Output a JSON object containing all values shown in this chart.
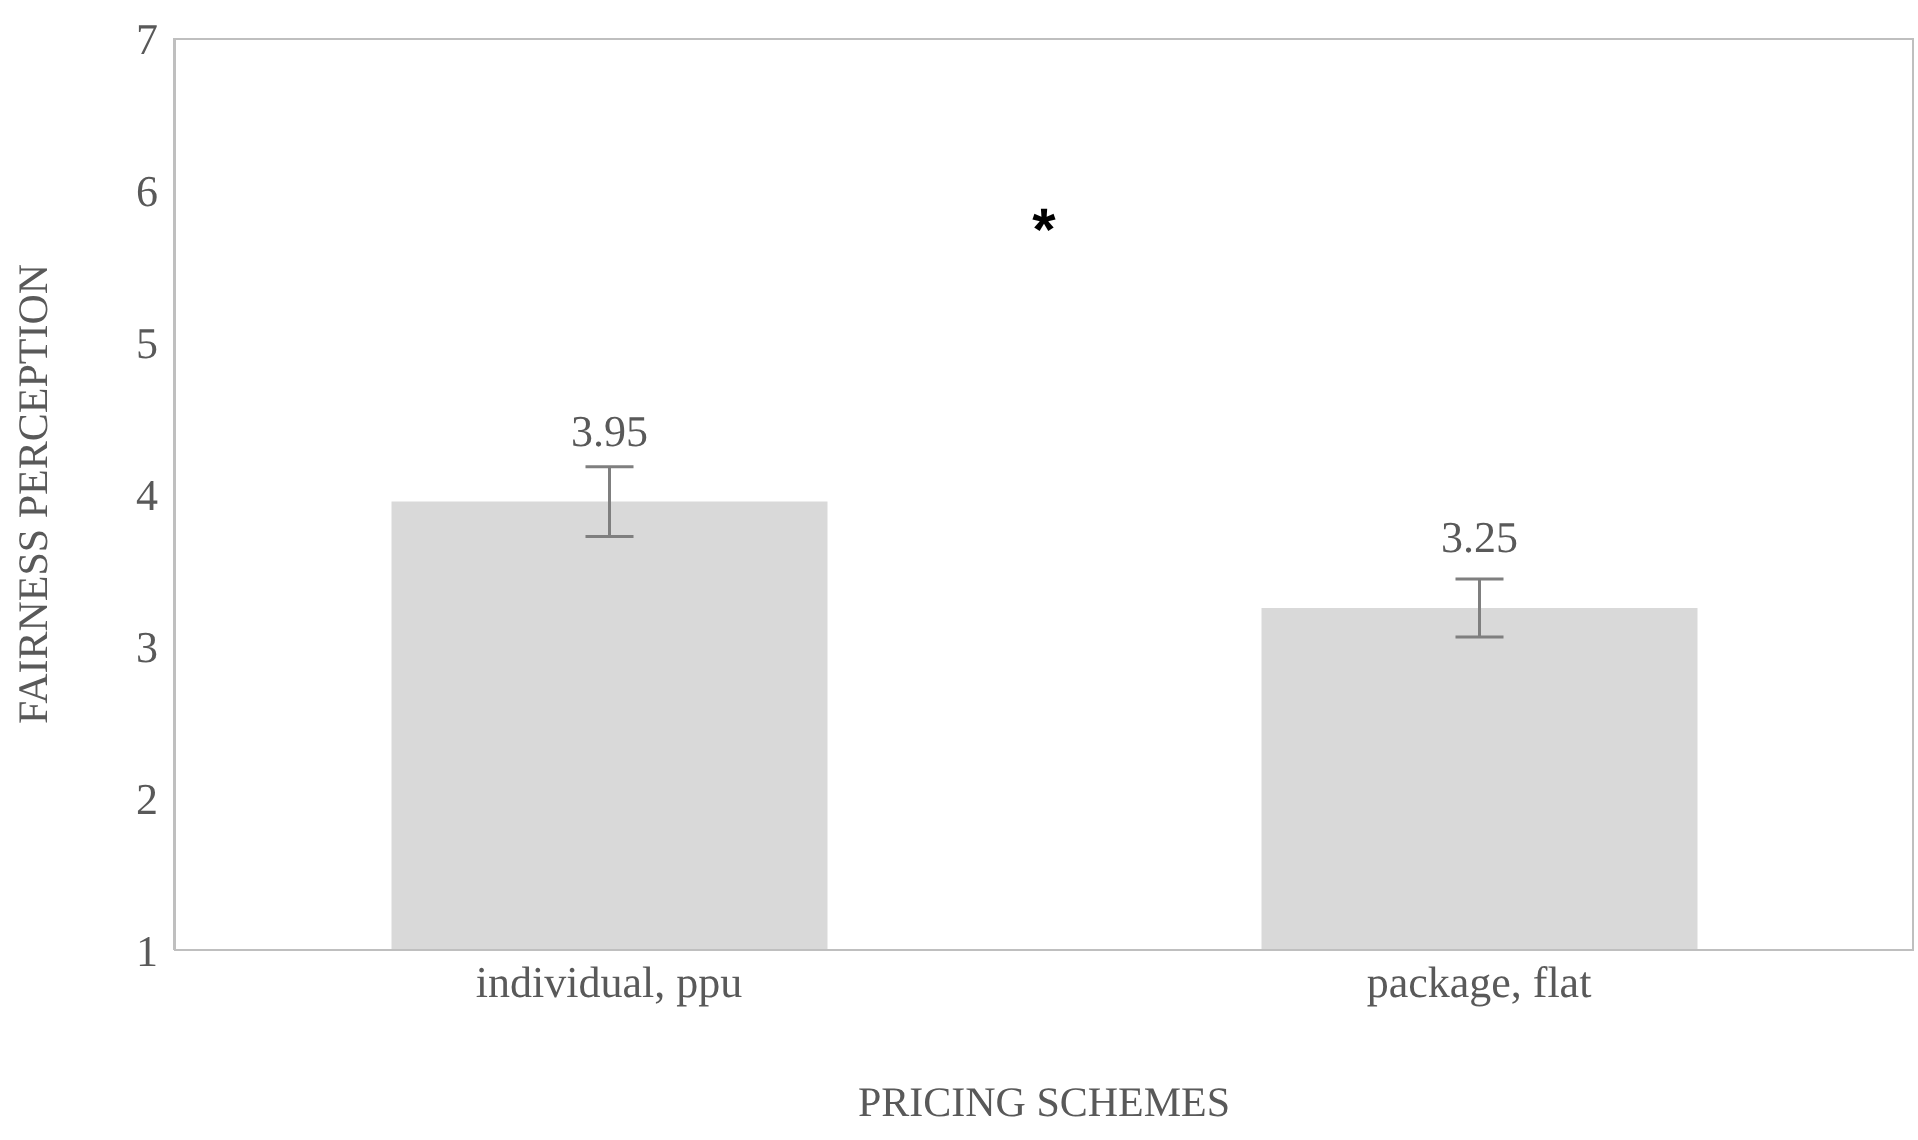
{
  "chart_data": {
    "type": "bar",
    "xlabel": "PRICING SCHEMES",
    "ylabel": "FAIRNESS PERCEPTION",
    "categories": [
      "individual, ppu",
      "package, flat"
    ],
    "values": [
      3.95,
      3.25
    ],
    "errors": [
      0.23,
      0.19
    ],
    "color": "#d9d9d9",
    "ylim": [
      1,
      7
    ],
    "yticks": [
      1,
      2,
      3,
      4,
      5,
      6,
      7
    ],
    "grid": false,
    "legend": false,
    "data_labels": true,
    "annotations": [
      "*"
    ]
  }
}
